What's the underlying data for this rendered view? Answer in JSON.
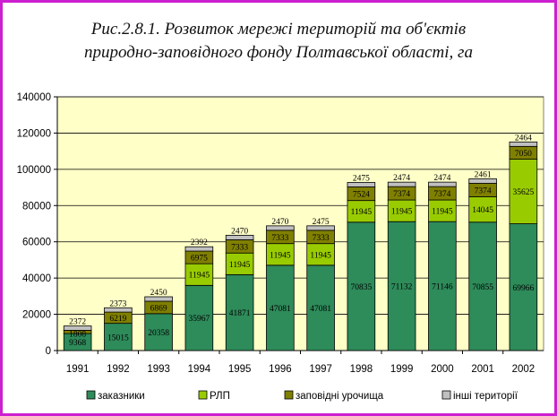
{
  "title_lines": [
    "Рис.2.8.1. Розвиток мережі територій та об'єктів",
    "природно-заповідного фонду Полтавської області, га"
  ],
  "chart_data": {
    "type": "bar",
    "stacked": true,
    "categories": [
      "1991",
      "1992",
      "1993",
      "1994",
      "1995",
      "1996",
      "1997",
      "1998",
      "1999",
      "2000",
      "2001",
      "2002"
    ],
    "series": [
      {
        "name": "заказники",
        "color": "#2e8b5a",
        "values": [
          9368,
          15015,
          20358,
          35967,
          41871,
          47081,
          47081,
          70835,
          71132,
          71146,
          70855,
          69966
        ]
      },
      {
        "name": "РЛП",
        "color": "#99cc00",
        "values": [
          0,
          0,
          0,
          11945,
          11945,
          11945,
          11945,
          11945,
          11945,
          11945,
          14045,
          35625
        ]
      },
      {
        "name": "заповідні урочища",
        "color": "#808000",
        "values": [
          1808,
          6219,
          6869,
          6975,
          7333,
          7333,
          7333,
          7524,
          7374,
          7374,
          7374,
          7050
        ]
      },
      {
        "name": "інші території",
        "color": "#c0c0c0",
        "values": [
          2372,
          2373,
          2450,
          2392,
          2470,
          2470,
          2475,
          2475,
          2474,
          2474,
          2461,
          2464
        ]
      }
    ],
    "ylim": [
      0,
      140000
    ],
    "yticks": [
      "0",
      "20000",
      "40000",
      "60000",
      "80000",
      "100000",
      "120000",
      "140000"
    ],
    "grid": true,
    "legend_position": "bottom"
  }
}
